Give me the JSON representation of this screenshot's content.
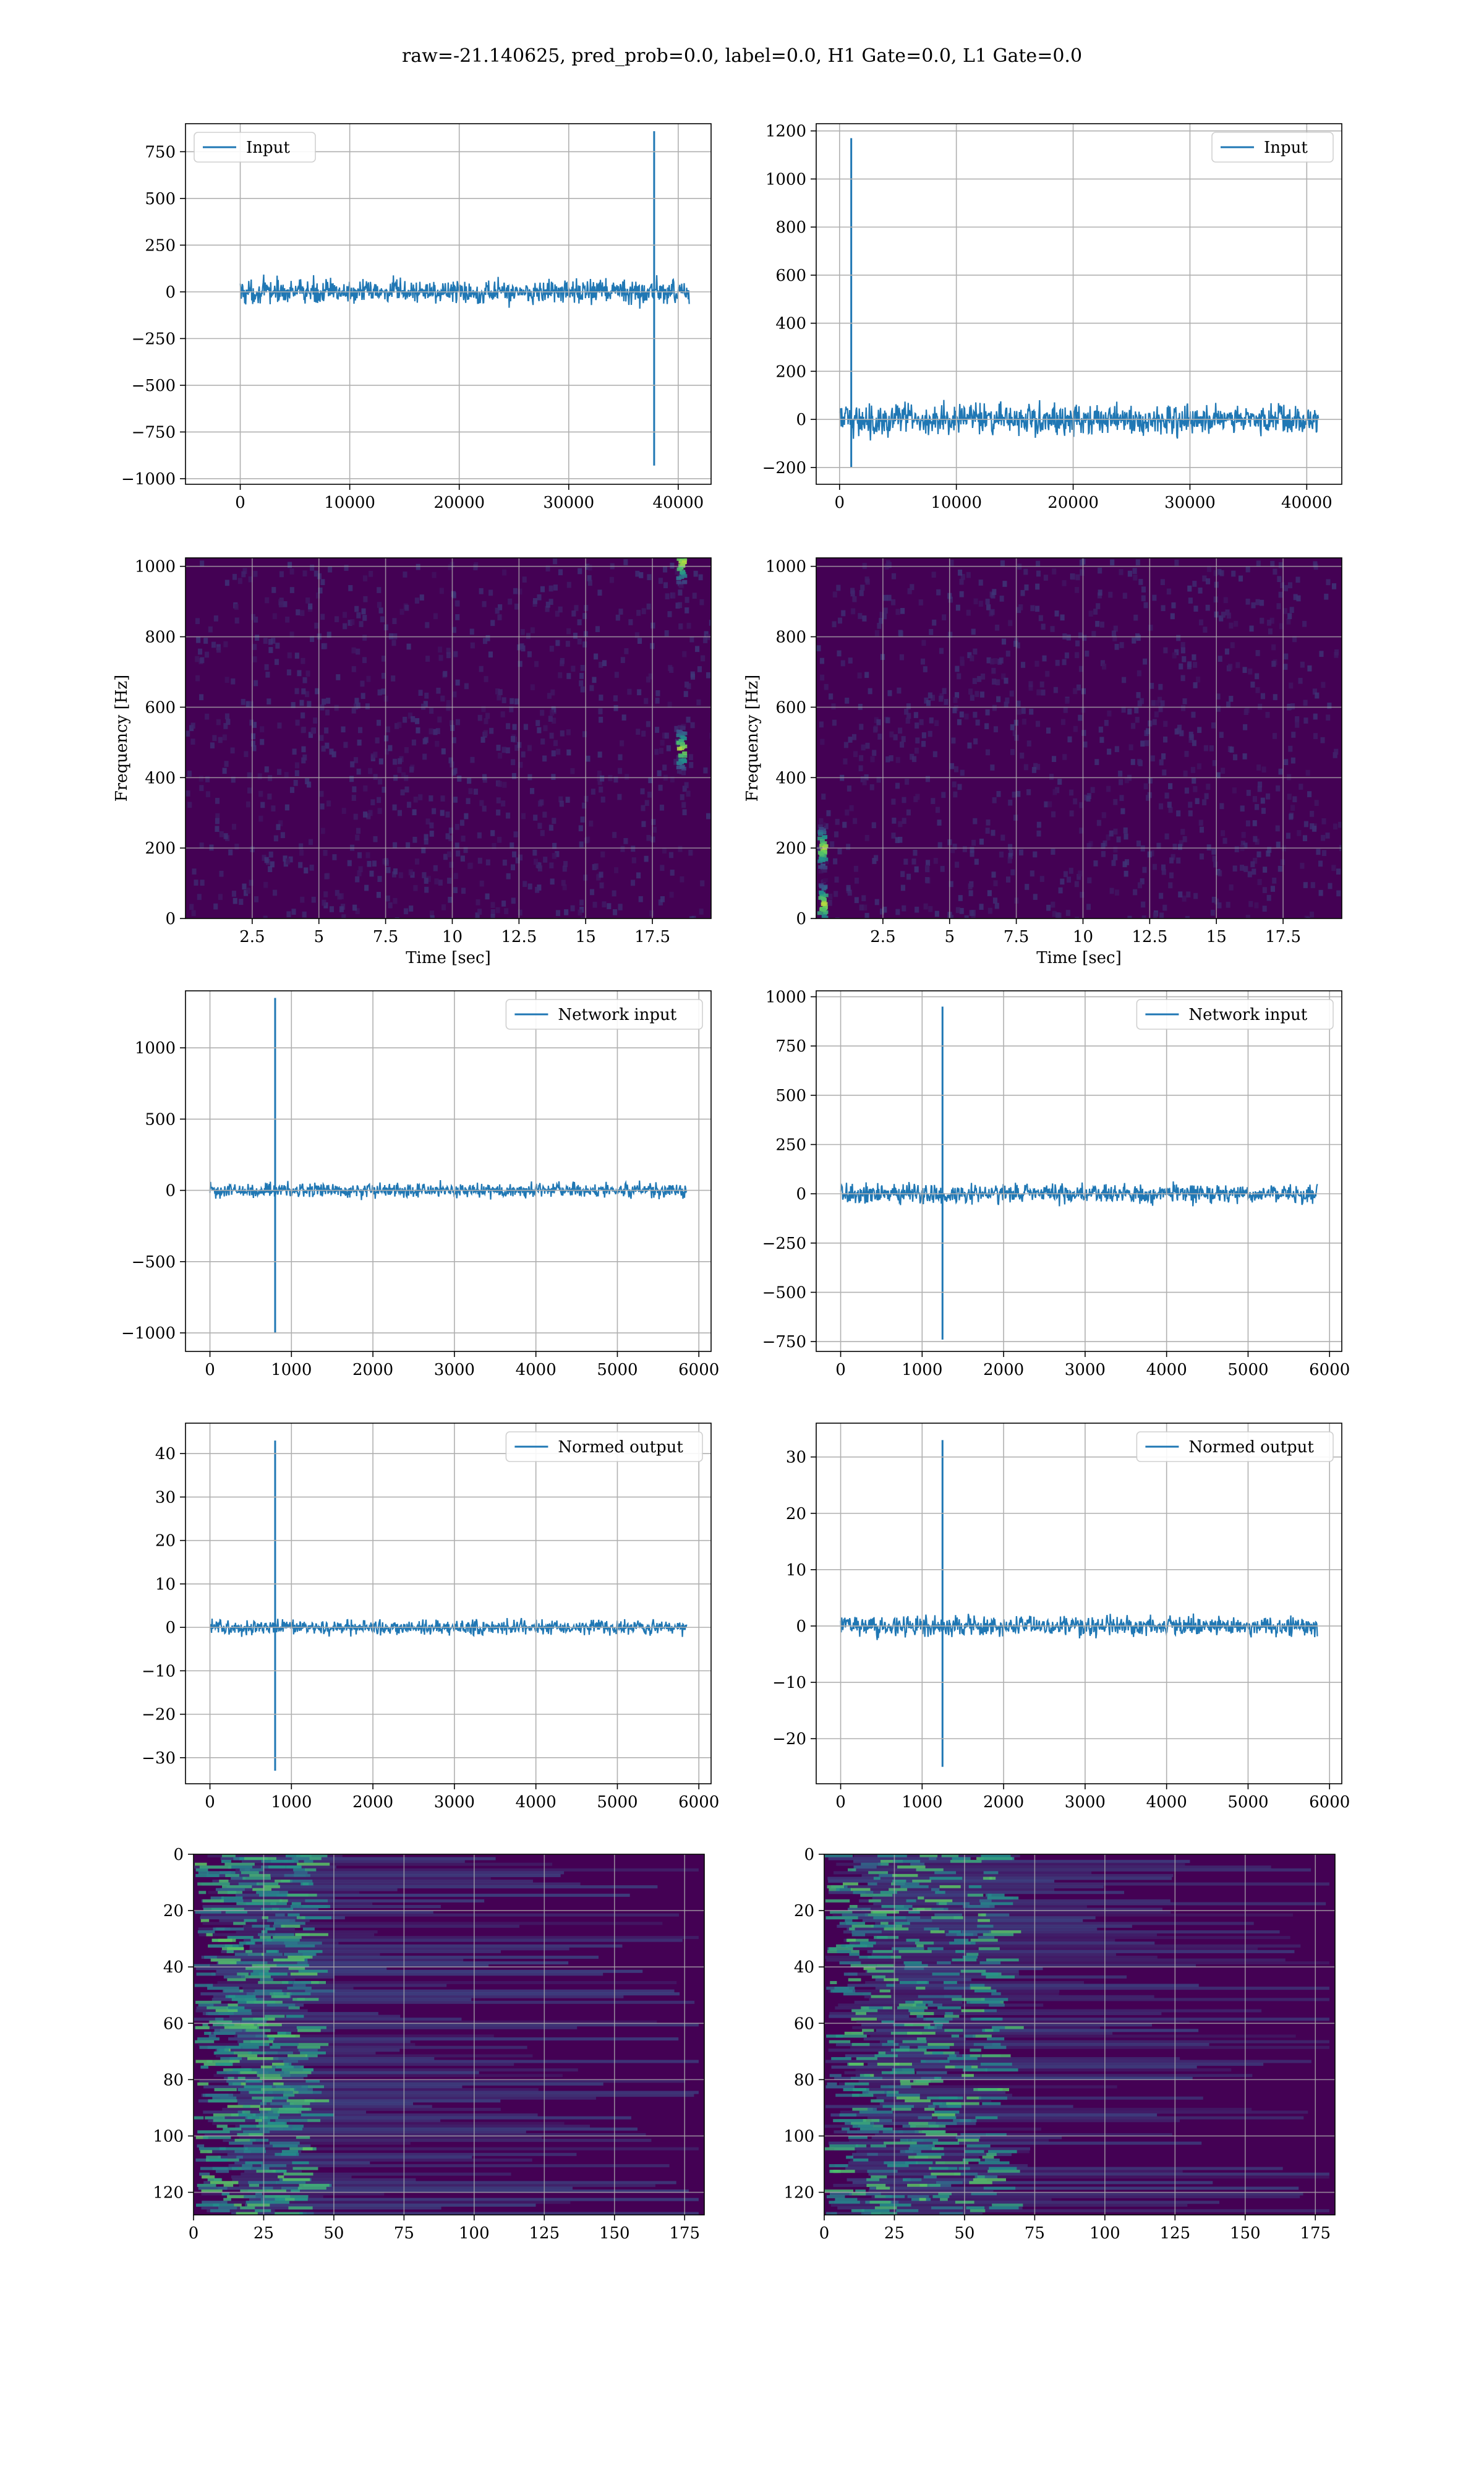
{
  "suptitle": "raw=-21.140625, pred_prob=0.0, label=0.0, H1 Gate=0.0, L1 Gate=0.0",
  "colors": {
    "line": "#1f77b4",
    "grid": "#b0b0b0",
    "viridis_dark": "#440154",
    "viridis_mid": "#21918c",
    "viridis_bright": "#fde725"
  },
  "chart_data": [
    {
      "id": "input-left",
      "type": "line",
      "legend": "Input",
      "legend_position": "upper left",
      "xlim": [
        -5000,
        43000
      ],
      "ylim": [
        -1030,
        900
      ],
      "xticks": [
        0,
        10000,
        20000,
        30000,
        40000
      ],
      "yticks": [
        -1000,
        -750,
        -500,
        -250,
        0,
        250,
        500,
        750
      ],
      "x_range": [
        0,
        41000
      ],
      "noise_amplitude": 45,
      "spikes": [
        {
          "x": 37800,
          "max": 860,
          "min": -930
        }
      ],
      "grid": true
    },
    {
      "id": "input-right",
      "type": "line",
      "legend": "Input",
      "legend_position": "upper right",
      "xlim": [
        -2000,
        43000
      ],
      "ylim": [
        -270,
        1230
      ],
      "xticks": [
        0,
        10000,
        20000,
        30000,
        40000
      ],
      "yticks": [
        -200,
        0,
        200,
        400,
        600,
        800,
        1000,
        1200
      ],
      "x_range": [
        0,
        41000
      ],
      "noise_amplitude": 45,
      "spikes": [
        {
          "x": 1000,
          "max": 1170,
          "min": -200
        }
      ],
      "grid": true
    },
    {
      "id": "spectrogram-left",
      "type": "heatmap",
      "xlabel": "Time [sec]",
      "ylabel": "Frequency [Hz]",
      "xlim": [
        0,
        19.7
      ],
      "ylim": [
        0,
        1024
      ],
      "xticks": [
        2.5,
        5.0,
        7.5,
        10.0,
        12.5,
        15.0,
        17.5
      ],
      "yticks": [
        0,
        200,
        400,
        600,
        800,
        1000
      ],
      "hotspots": [
        {
          "t": 18.6,
          "f": 1010
        },
        {
          "t": 18.6,
          "f": 480
        }
      ],
      "grid": true
    },
    {
      "id": "spectrogram-right",
      "type": "heatmap",
      "xlabel": "Time [sec]",
      "ylabel": "Frequency [Hz]",
      "xlim": [
        0,
        19.7
      ],
      "ylim": [
        0,
        1024
      ],
      "xticks": [
        2.5,
        5.0,
        7.5,
        10.0,
        12.5,
        15.0,
        17.5
      ],
      "yticks": [
        0,
        200,
        400,
        600,
        800,
        1000
      ],
      "hotspots": [
        {
          "t": 0.25,
          "f": 40
        },
        {
          "t": 0.25,
          "f": 200
        }
      ],
      "grid": true
    },
    {
      "id": "network-input-left",
      "type": "line",
      "legend": "Network input",
      "legend_position": "upper right",
      "xlim": [
        -300,
        6150
      ],
      "ylim": [
        -1130,
        1400
      ],
      "xticks": [
        0,
        1000,
        2000,
        3000,
        4000,
        5000,
        6000
      ],
      "yticks": [
        -1000,
        -500,
        0,
        500,
        1000
      ],
      "x_range": [
        0,
        5850
      ],
      "noise_amplitude": 35,
      "spikes": [
        {
          "x": 800,
          "max": 1350,
          "min": -1000
        }
      ],
      "grid": true
    },
    {
      "id": "network-input-right",
      "type": "line",
      "legend": "Network input",
      "legend_position": "upper right",
      "xlim": [
        -300,
        6150
      ],
      "ylim": [
        -800,
        1030
      ],
      "xticks": [
        0,
        1000,
        2000,
        3000,
        4000,
        5000,
        6000
      ],
      "yticks": [
        -750,
        -500,
        -250,
        0,
        250,
        500,
        750,
        1000
      ],
      "x_range": [
        0,
        5850
      ],
      "noise_amplitude": 35,
      "spikes": [
        {
          "x": 1250,
          "max": 950,
          "min": -740
        }
      ],
      "grid": true
    },
    {
      "id": "normed-output-left",
      "type": "line",
      "legend": "Normed output",
      "legend_position": "upper right",
      "xlim": [
        -300,
        6150
      ],
      "ylim": [
        -36,
        47
      ],
      "xticks": [
        0,
        1000,
        2000,
        3000,
        4000,
        5000,
        6000
      ],
      "yticks": [
        -30,
        -20,
        -10,
        0,
        10,
        20,
        30,
        40
      ],
      "x_range": [
        0,
        5850
      ],
      "noise_amplitude": 1.2,
      "spikes": [
        {
          "x": 800,
          "max": 43,
          "min": -33
        }
      ],
      "grid": true
    },
    {
      "id": "normed-output-right",
      "type": "line",
      "legend": "Normed output",
      "legend_position": "upper right",
      "xlim": [
        -300,
        6150
      ],
      "ylim": [
        -28,
        36
      ],
      "xticks": [
        0,
        1000,
        2000,
        3000,
        4000,
        5000,
        6000
      ],
      "yticks": [
        -20,
        -10,
        0,
        10,
        20,
        30
      ],
      "x_range": [
        0,
        5850
      ],
      "noise_amplitude": 1.2,
      "spikes": [
        {
          "x": 1250,
          "max": 33,
          "min": -25
        }
      ],
      "grid": true
    },
    {
      "id": "feature-map-left",
      "type": "heatmap",
      "xlim": [
        0,
        182
      ],
      "ylim": [
        128,
        0
      ],
      "xticks": [
        0,
        25,
        50,
        75,
        100,
        125,
        150,
        175
      ],
      "yticks": [
        0,
        20,
        40,
        60,
        80,
        100,
        120
      ],
      "active_band": [
        0,
        40
      ],
      "grid": true
    },
    {
      "id": "feature-map-right",
      "type": "heatmap",
      "xlim": [
        0,
        182
      ],
      "ylim": [
        128,
        0
      ],
      "xticks": [
        0,
        25,
        50,
        75,
        100,
        125,
        150,
        175
      ],
      "yticks": [
        0,
        20,
        40,
        60,
        80,
        100,
        120
      ],
      "active_band": [
        0,
        60
      ],
      "grid": true
    }
  ]
}
